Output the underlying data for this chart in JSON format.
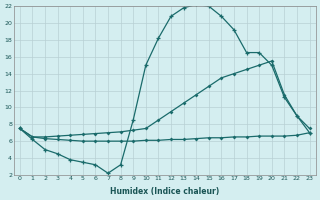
{
  "xlabel": "Humidex (Indice chaleur)",
  "bg_color": "#d4eef0",
  "grid_color": "#b8d0d4",
  "line_color": "#1a6b6b",
  "xlim": [
    -0.5,
    23.5
  ],
  "ylim": [
    2,
    22
  ],
  "xticks": [
    0,
    1,
    2,
    3,
    4,
    5,
    6,
    7,
    8,
    9,
    10,
    11,
    12,
    13,
    14,
    15,
    16,
    17,
    18,
    19,
    20,
    21,
    22,
    23
  ],
  "yticks": [
    2,
    4,
    6,
    8,
    10,
    12,
    14,
    16,
    18,
    20,
    22
  ],
  "line1_x": [
    0,
    1,
    2,
    3,
    4,
    5,
    6,
    7,
    8,
    9,
    10,
    11,
    12,
    13,
    14,
    15,
    16,
    17,
    18,
    19,
    20,
    21,
    22,
    23
  ],
  "line1_y": [
    7.5,
    6.2,
    5.0,
    4.5,
    3.8,
    3.5,
    3.2,
    2.2,
    3.2,
    8.5,
    15.0,
    18.2,
    20.8,
    21.8,
    22.2,
    22.0,
    20.8,
    19.2,
    16.5,
    16.5,
    15.0,
    11.2,
    9.0,
    7.0
  ],
  "line2_x": [
    0,
    1,
    2,
    3,
    4,
    5,
    6,
    7,
    8,
    9,
    10,
    11,
    12,
    13,
    14,
    15,
    16,
    17,
    18,
    19,
    20,
    21,
    22,
    23
  ],
  "line2_y": [
    7.5,
    6.5,
    6.5,
    6.6,
    6.7,
    6.8,
    6.9,
    7.0,
    7.1,
    7.3,
    7.5,
    8.5,
    9.5,
    10.5,
    11.5,
    12.5,
    13.5,
    14.0,
    14.5,
    15.0,
    15.5,
    11.5,
    9.0,
    7.5
  ],
  "line3_x": [
    0,
    1,
    2,
    3,
    4,
    5,
    6,
    7,
    8,
    9,
    10,
    11,
    12,
    13,
    14,
    15,
    16,
    17,
    18,
    19,
    20,
    21,
    22,
    23
  ],
  "line3_y": [
    7.5,
    6.5,
    6.3,
    6.2,
    6.1,
    6.0,
    6.0,
    6.0,
    6.0,
    6.0,
    6.1,
    6.1,
    6.2,
    6.2,
    6.3,
    6.4,
    6.4,
    6.5,
    6.5,
    6.6,
    6.6,
    6.6,
    6.7,
    7.0
  ]
}
